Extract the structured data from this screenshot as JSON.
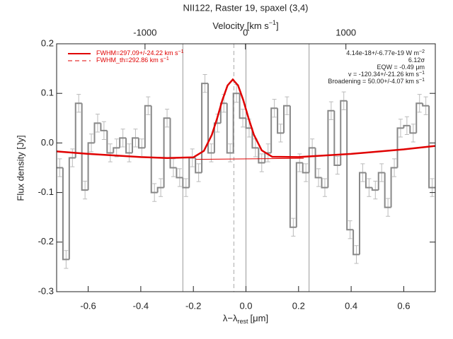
{
  "chart_data": {
    "type": "histogram",
    "title": "NII122, Raster 19, spaxel (3,4)",
    "x_label": {
      "main": "λ−λ",
      "sub": "rest",
      "unit": "[μm]"
    },
    "y_label": "Flux density [Jy]",
    "x2_label": {
      "main": "Velocity [km s",
      "sup": "−1",
      "end": "]"
    },
    "xlim": [
      -0.72,
      0.72
    ],
    "ylim": [
      -0.3,
      0.2
    ],
    "x2lim": [
      -1880,
      1890
    ],
    "xticks": [
      -0.6,
      -0.4,
      -0.2,
      {
        "value": 0,
        "label": "0.0"
      },
      0.2,
      0.4,
      0.6
    ],
    "yticks": [
      -0.3,
      -0.2,
      -0.1,
      {
        "value": 0,
        "label": "0.0"
      },
      0.1,
      0.2
    ],
    "x2ticks": [
      -1000,
      0,
      1000
    ],
    "bins": [
      -0.72,
      -0.696,
      -0.672,
      -0.648,
      -0.624,
      -0.6,
      -0.576,
      -0.552,
      -0.528,
      -0.504,
      -0.48,
      -0.456,
      -0.432,
      -0.408,
      -0.384,
      -0.36,
      -0.336,
      -0.312,
      -0.288,
      -0.264,
      -0.24,
      -0.216,
      -0.192,
      -0.168,
      -0.144,
      -0.12,
      -0.096,
      -0.072,
      -0.048,
      -0.024,
      0,
      0.024,
      0.048,
      0.072,
      0.096,
      0.12,
      0.144,
      0.168,
      0.192,
      0.216,
      0.24,
      0.264,
      0.288,
      0.312,
      0.336,
      0.36,
      0.384,
      0.408,
      0.432,
      0.456,
      0.48,
      0.504,
      0.528,
      0.552,
      0.576,
      0.6,
      0.624,
      0.648,
      0.672,
      0.696,
      0.72
    ],
    "values": [
      -0.05,
      -0.235,
      -0.03,
      0.08,
      -0.095,
      0,
      0.04,
      0.025,
      -0.02,
      -0.01,
      0.01,
      -0.02,
      0.01,
      -0.01,
      0.075,
      -0.1,
      -0.09,
      0.05,
      -0.05,
      -0.07,
      -0.09,
      -0.03,
      -0.06,
      0.12,
      -0.02,
      0.04,
      0.08,
      -0.02,
      0.1,
      0.05,
      0.03,
      -0.01,
      -0.04,
      -0.02,
      0.07,
      0.02,
      0.075,
      -0.17,
      -0.04,
      -0.06,
      -0.01,
      -0.07,
      -0.09,
      0.065,
      -0.045,
      0.085,
      -0.175,
      -0.225,
      -0.06,
      -0.09,
      -0.095,
      -0.06,
      -0.13,
      -0.05,
      0.03,
      0.035,
      0.02,
      0.08,
      0.075,
      -0.09
    ],
    "errors": [
      0.018,
      0.018,
      0.018,
      0.018,
      0.018,
      0.018,
      0.018,
      0.018,
      0.018,
      0.018,
      0.018,
      0.018,
      0.018,
      0.018,
      0.018,
      0.018,
      0.018,
      0.018,
      0.018,
      0.018,
      0.018,
      0.018,
      0.018,
      0.018,
      0.018,
      0.018,
      0.018,
      0.018,
      0.018,
      0.018,
      0.018,
      0.018,
      0.018,
      0.018,
      0.018,
      0.018,
      0.018,
      0.018,
      0.018,
      0.018,
      0.018,
      0.018,
      0.018,
      0.018,
      0.018,
      0.018,
      0.018,
      0.018,
      0.018,
      0.018,
      0.018,
      0.018,
      0.018,
      0.018,
      0.018,
      0.018,
      0.018,
      0.018,
      0.018,
      0.018
    ],
    "color": "#888888",
    "fit": {
      "name": "FWHM=297.09+/-24.22 km s",
      "sup": "−1",
      "color": "#e00000",
      "x": [
        -0.72,
        -0.6,
        -0.4,
        -0.3,
        -0.2,
        -0.16,
        -0.13,
        -0.11,
        -0.09,
        -0.07,
        -0.05,
        -0.03,
        -0.01,
        0.01,
        0.03,
        0.06,
        0.1,
        0.2,
        0.4,
        0.6,
        0.72
      ],
      "y": [
        -0.017,
        -0.022,
        -0.0285,
        -0.0304,
        -0.029,
        -0.016,
        0.016,
        0.049,
        0.086,
        0.116,
        0.128,
        0.116,
        0.086,
        0.0495,
        0.0167,
        -0.015,
        -0.028,
        -0.0285,
        -0.022,
        -0.0129,
        -0.006
      ]
    },
    "fit_th": {
      "name": "FWHM_th=292.86 km s",
      "sup": "−1",
      "color": "#e00000",
      "x": [
        -0.19,
        0.22
      ],
      "y": [
        -0.033,
        -0.031
      ]
    },
    "vlines": [
      -0.24,
      0,
      0.24
    ],
    "dashed_vline": -0.046,
    "annotations": [
      {
        "main": "4.14e-18+/-6.77e-19 W m",
        "sup": "−2"
      },
      {
        "main": "6.12σ",
        "sup": ""
      },
      {
        "main": "EQW = -0.49 μm",
        "sup": ""
      },
      {
        "main": "v = -120.34+/-21.26 km s",
        "sup": "−1"
      },
      {
        "main": "Broadening = 50.00+/-4.07 km s",
        "sup": "−1"
      }
    ]
  }
}
